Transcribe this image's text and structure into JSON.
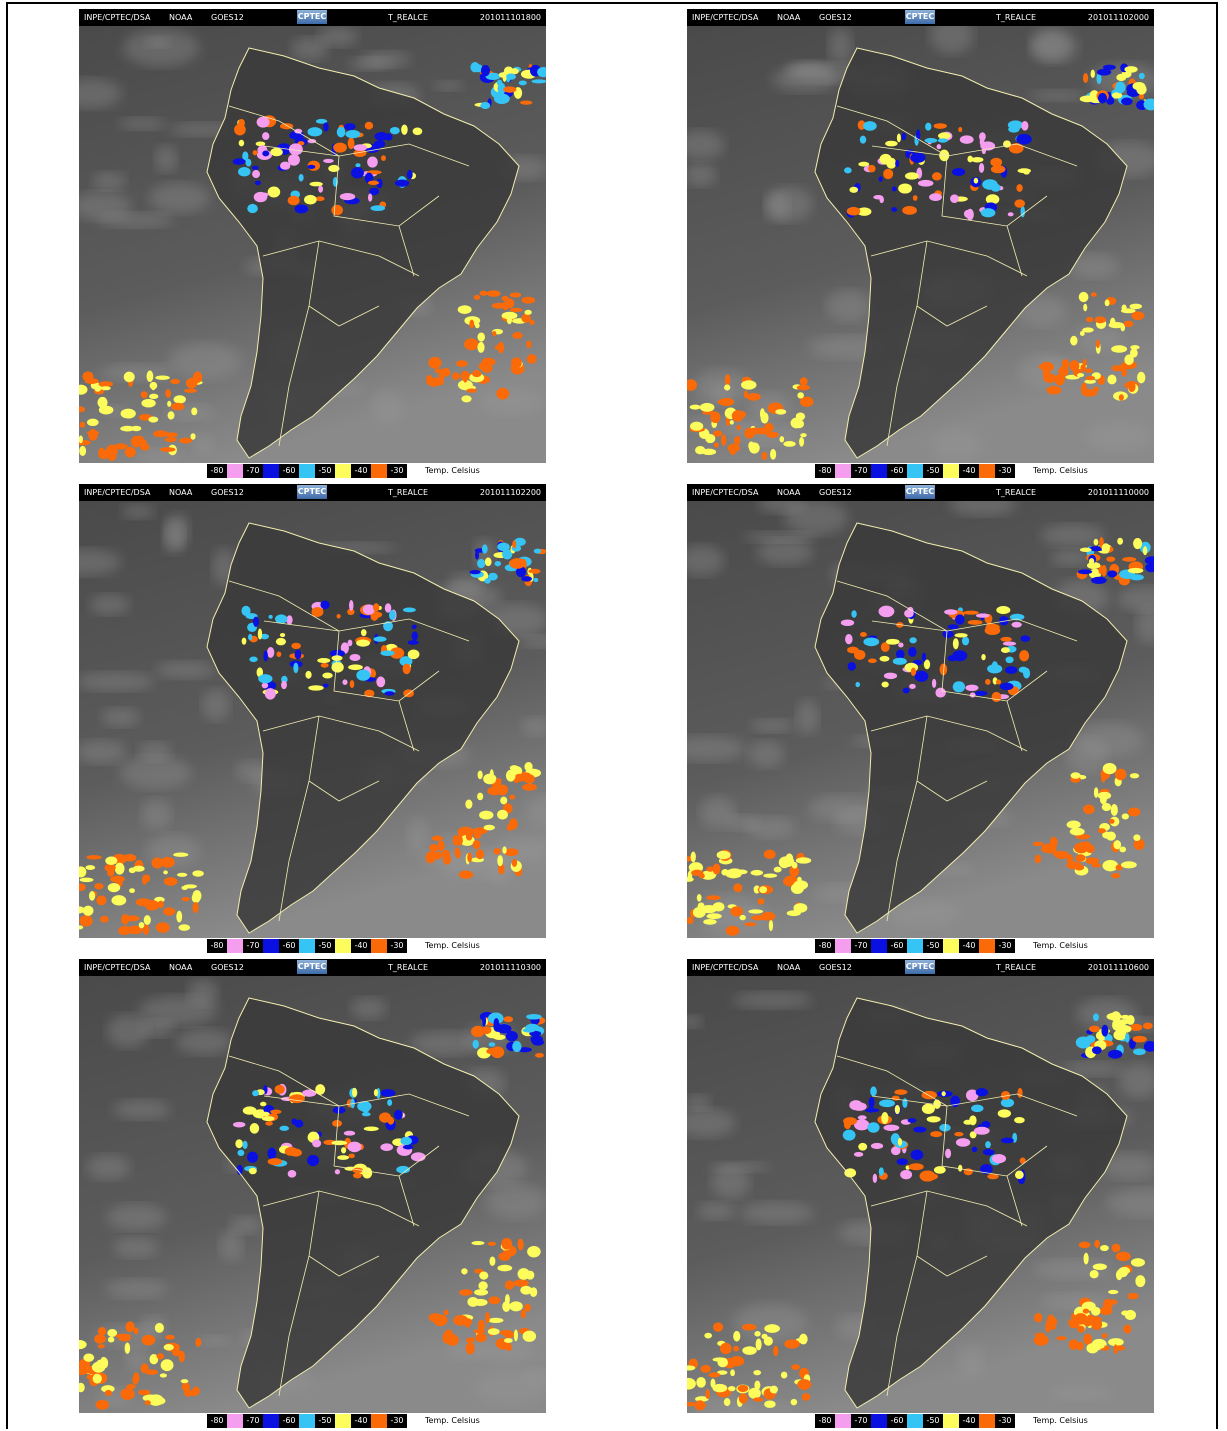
{
  "header": {
    "source": "INPE/CPTEC/DSA",
    "agency": "NOAA",
    "satellite": "GOES12",
    "logo": "CPTEC",
    "product": "T_REALCE"
  },
  "panels": [
    {
      "timestamp": "201011101800"
    },
    {
      "timestamp": "201011102000"
    },
    {
      "timestamp": "201011102200"
    },
    {
      "timestamp": "201011110000"
    },
    {
      "timestamp": "201011110300"
    },
    {
      "timestamp": "201011110600"
    }
  ],
  "legend": {
    "labels": [
      "-80",
      "-70",
      "-60",
      "-50",
      "-40",
      "-30"
    ],
    "colors": [
      "#f59ef0",
      "#0a10e0",
      "#36c4f4",
      "#fcfc5c",
      "#fa6a08"
    ],
    "unit": "Temp. Celsius"
  }
}
